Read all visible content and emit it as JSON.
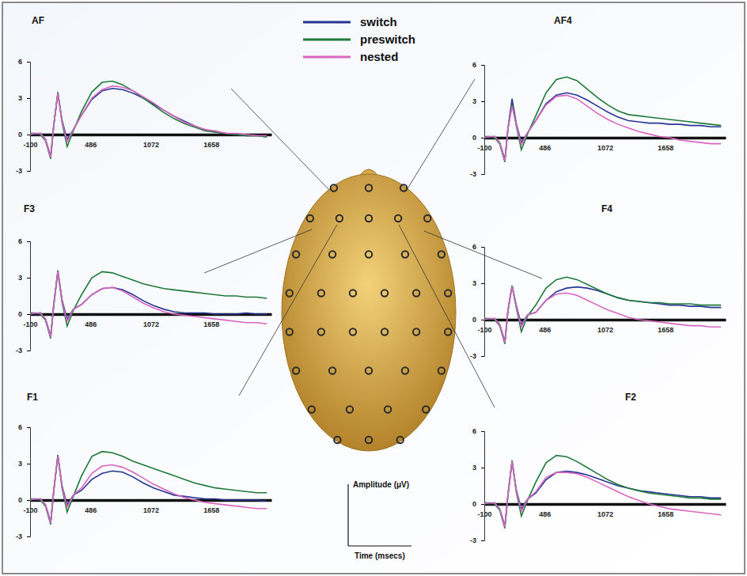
{
  "chart_data": [
    {
      "type": "line",
      "title": "AF",
      "legend": "top",
      "x": [
        -100,
        -50,
        0,
        50,
        100,
        130,
        170,
        210,
        260,
        320,
        400,
        500,
        600,
        700,
        800,
        900,
        1000,
        1100,
        1200,
        1300,
        1400,
        1500,
        1600,
        1700,
        1800,
        1900,
        2000,
        2100,
        2200
      ],
      "xlim": [
        -100,
        2244
      ],
      "xticks": [
        -100,
        486,
        1072,
        1658
      ],
      "ylim": [
        -3,
        6
      ],
      "yticks": [
        -3,
        0,
        3,
        6
      ],
      "series": [
        {
          "name": "switch",
          "color": "#283593",
          "values": [
            0.1,
            0.0,
            0.1,
            -0.4,
            -1.8,
            0.8,
            3.4,
            1.2,
            -0.4,
            0.4,
            1.6,
            2.9,
            3.6,
            3.8,
            3.7,
            3.4,
            3.0,
            2.5,
            2.0,
            1.5,
            1.1,
            0.7,
            0.4,
            0.2,
            0.1,
            0.0,
            -0.1,
            -0.1,
            -0.2
          ]
        },
        {
          "name": "preswitch",
          "color": "#1f7a3a",
          "values": [
            0.1,
            0.1,
            0.0,
            -0.5,
            -2.0,
            0.7,
            3.5,
            1.0,
            -1.0,
            0.3,
            1.9,
            3.5,
            4.3,
            4.4,
            4.1,
            3.6,
            3.0,
            2.4,
            1.8,
            1.3,
            0.9,
            0.6,
            0.3,
            0.2,
            0.1,
            0.0,
            -0.1,
            -0.1,
            -0.2
          ]
        },
        {
          "name": "nested",
          "color": "#d966c0",
          "values": [
            0.0,
            0.1,
            0.1,
            -0.4,
            -1.9,
            0.8,
            3.4,
            1.1,
            -0.6,
            0.4,
            1.6,
            3.0,
            3.7,
            4.0,
            3.9,
            3.6,
            3.1,
            2.6,
            2.0,
            1.5,
            1.0,
            0.7,
            0.4,
            0.3,
            0.1,
            0.1,
            0.0,
            -0.1,
            -0.1
          ]
        }
      ]
    },
    {
      "type": "line",
      "title": "AF4",
      "x": [
        -100,
        -50,
        0,
        50,
        100,
        130,
        170,
        210,
        260,
        320,
        400,
        500,
        600,
        700,
        800,
        900,
        1000,
        1100,
        1200,
        1300,
        1400,
        1500,
        1600,
        1700,
        1800,
        1900,
        2000,
        2100,
        2200
      ],
      "xlim": [
        -100,
        2244
      ],
      "xticks": [
        -100,
        486,
        1072,
        1658
      ],
      "ylim": [
        -3,
        6
      ],
      "yticks": [
        -3,
        0,
        3,
        6
      ],
      "series": [
        {
          "name": "switch",
          "color": "#283593",
          "values": [
            0.1,
            0.0,
            0.1,
            -0.4,
            -1.8,
            0.8,
            3.2,
            1.2,
            -0.4,
            0.4,
            1.4,
            2.8,
            3.5,
            3.7,
            3.5,
            3.1,
            2.6,
            2.1,
            1.7,
            1.4,
            1.3,
            1.2,
            1.2,
            1.1,
            1.1,
            1.0,
            1.0,
            0.9,
            0.9
          ]
        },
        {
          "name": "preswitch",
          "color": "#1f7a3a",
          "values": [
            0.1,
            0.1,
            0.0,
            -0.5,
            -2.0,
            0.7,
            2.8,
            1.0,
            -1.0,
            0.3,
            1.8,
            3.7,
            4.8,
            5.0,
            4.7,
            4.0,
            3.3,
            2.7,
            2.2,
            1.9,
            1.8,
            1.7,
            1.6,
            1.5,
            1.4,
            1.3,
            1.2,
            1.1,
            1.0
          ]
        },
        {
          "name": "nested",
          "color": "#d966c0",
          "values": [
            0.0,
            0.1,
            0.1,
            -0.4,
            -1.9,
            0.8,
            2.6,
            1.1,
            -0.6,
            0.4,
            1.4,
            2.7,
            3.4,
            3.5,
            3.2,
            2.6,
            2.0,
            1.5,
            1.1,
            0.8,
            0.5,
            0.3,
            0.1,
            0.0,
            -0.2,
            -0.3,
            -0.4,
            -0.5,
            -0.5
          ]
        }
      ]
    },
    {
      "type": "line",
      "title": "F3",
      "x": [
        -100,
        -50,
        0,
        50,
        100,
        130,
        170,
        210,
        260,
        320,
        400,
        500,
        600,
        700,
        800,
        900,
        1000,
        1100,
        1200,
        1300,
        1400,
        1500,
        1600,
        1700,
        1800,
        1900,
        2000,
        2100,
        2200
      ],
      "xlim": [
        -100,
        2244
      ],
      "xticks": [
        -100,
        486,
        1072,
        1658
      ],
      "ylim": [
        -3,
        6
      ],
      "yticks": [
        -3,
        0,
        3,
        6
      ],
      "series": [
        {
          "name": "switch",
          "color": "#283593",
          "values": [
            0.1,
            0.0,
            0.1,
            -0.4,
            -1.8,
            0.8,
            3.6,
            1.2,
            -0.4,
            0.4,
            0.8,
            1.6,
            2.1,
            2.2,
            2.0,
            1.6,
            1.1,
            0.7,
            0.4,
            0.2,
            0.1,
            0.1,
            0.1,
            0.0,
            0.0,
            0.0,
            0.1,
            0.0,
            0.0
          ]
        },
        {
          "name": "preswitch",
          "color": "#1f7a3a",
          "values": [
            0.1,
            0.1,
            0.0,
            -0.5,
            -2.0,
            0.7,
            3.5,
            1.0,
            -1.0,
            0.3,
            1.6,
            3.0,
            3.5,
            3.4,
            3.1,
            2.8,
            2.5,
            2.3,
            2.1,
            2.0,
            1.9,
            1.8,
            1.7,
            1.6,
            1.5,
            1.5,
            1.4,
            1.4,
            1.3
          ]
        },
        {
          "name": "nested",
          "color": "#d966c0",
          "values": [
            0.0,
            0.1,
            0.1,
            -0.4,
            -1.9,
            0.8,
            3.5,
            1.1,
            -0.6,
            0.4,
            0.8,
            1.6,
            2.1,
            2.2,
            1.9,
            1.4,
            0.9,
            0.5,
            0.2,
            0.0,
            -0.1,
            -0.2,
            -0.3,
            -0.4,
            -0.5,
            -0.6,
            -0.7,
            -0.7,
            -0.8
          ]
        }
      ]
    },
    {
      "type": "line",
      "title": "F4",
      "x": [
        -100,
        -50,
        0,
        50,
        100,
        130,
        170,
        210,
        260,
        320,
        400,
        500,
        600,
        700,
        800,
        900,
        1000,
        1100,
        1200,
        1300,
        1400,
        1500,
        1600,
        1700,
        1800,
        1900,
        2000,
        2100,
        2200
      ],
      "xlim": [
        -100,
        2244
      ],
      "xticks": [
        -100,
        486,
        1072,
        1658
      ],
      "ylim": [
        -3,
        6
      ],
      "yticks": [
        -3,
        0,
        3,
        6
      ],
      "series": [
        {
          "name": "switch",
          "color": "#283593",
          "values": [
            0.1,
            0.0,
            0.1,
            -0.4,
            -1.8,
            0.8,
            2.8,
            1.2,
            -0.4,
            0.4,
            0.6,
            1.6,
            2.3,
            2.6,
            2.7,
            2.6,
            2.4,
            2.1,
            1.8,
            1.6,
            1.5,
            1.4,
            1.3,
            1.2,
            1.2,
            1.1,
            1.1,
            1.0,
            1.0
          ]
        },
        {
          "name": "preswitch",
          "color": "#1f7a3a",
          "values": [
            0.1,
            0.1,
            0.0,
            -0.5,
            -2.0,
            0.7,
            2.8,
            1.0,
            -1.0,
            0.3,
            1.2,
            2.6,
            3.3,
            3.5,
            3.3,
            2.9,
            2.5,
            2.1,
            1.8,
            1.6,
            1.5,
            1.4,
            1.4,
            1.3,
            1.3,
            1.3,
            1.2,
            1.2,
            1.2
          ]
        },
        {
          "name": "nested",
          "color": "#d966c0",
          "values": [
            0.0,
            0.1,
            0.1,
            -0.4,
            -1.9,
            0.8,
            2.7,
            1.1,
            -0.6,
            0.4,
            0.6,
            1.6,
            2.1,
            2.2,
            2.0,
            1.6,
            1.2,
            0.8,
            0.5,
            0.2,
            0.0,
            -0.1,
            -0.2,
            -0.3,
            -0.4,
            -0.5,
            -0.5,
            -0.6,
            -0.6
          ]
        }
      ]
    },
    {
      "type": "line",
      "title": "F1",
      "x": [
        -100,
        -50,
        0,
        50,
        100,
        130,
        170,
        210,
        260,
        320,
        400,
        500,
        600,
        700,
        800,
        900,
        1000,
        1100,
        1200,
        1300,
        1400,
        1500,
        1600,
        1700,
        1800,
        1900,
        2000,
        2100,
        2200
      ],
      "xlim": [
        -100,
        2244
      ],
      "xticks": [
        -100,
        486,
        1072,
        1658
      ],
      "ylim": [
        -3,
        6
      ],
      "yticks": [
        -3,
        0,
        3,
        6
      ],
      "series": [
        {
          "name": "switch",
          "color": "#283593",
          "values": [
            0.1,
            0.0,
            0.1,
            -0.4,
            -1.8,
            0.8,
            3.7,
            1.2,
            -0.4,
            0.4,
            0.8,
            1.7,
            2.2,
            2.4,
            2.3,
            1.9,
            1.4,
            1.0,
            0.7,
            0.4,
            0.3,
            0.2,
            0.1,
            0.1,
            0.0,
            0.0,
            0.0,
            0.0,
            -0.1
          ]
        },
        {
          "name": "preswitch",
          "color": "#1f7a3a",
          "values": [
            0.1,
            0.1,
            0.0,
            -0.5,
            -2.0,
            0.7,
            3.7,
            1.0,
            -1.0,
            0.3,
            2.0,
            3.6,
            4.0,
            3.9,
            3.6,
            3.2,
            2.9,
            2.6,
            2.3,
            2.0,
            1.7,
            1.4,
            1.2,
            1.0,
            0.9,
            0.8,
            0.7,
            0.6,
            0.6
          ]
        },
        {
          "name": "nested",
          "color": "#d966c0",
          "values": [
            0.0,
            0.1,
            0.1,
            -0.4,
            -1.9,
            0.8,
            3.6,
            1.1,
            -0.6,
            0.4,
            1.0,
            2.2,
            2.8,
            2.9,
            2.7,
            2.3,
            1.8,
            1.3,
            0.9,
            0.5,
            0.2,
            0.0,
            -0.2,
            -0.3,
            -0.4,
            -0.5,
            -0.6,
            -0.7,
            -0.7
          ]
        }
      ]
    },
    {
      "type": "line",
      "title": "F2",
      "x": [
        -100,
        -50,
        0,
        50,
        100,
        130,
        170,
        210,
        260,
        320,
        400,
        500,
        600,
        700,
        800,
        900,
        1000,
        1100,
        1200,
        1300,
        1400,
        1500,
        1600,
        1700,
        1800,
        1900,
        2000,
        2100,
        2200
      ],
      "xlim": [
        -100,
        2244
      ],
      "xticks": [
        -100,
        486,
        1072,
        1658
      ],
      "ylim": [
        -3,
        6
      ],
      "yticks": [
        -3,
        0,
        3,
        6
      ],
      "series": [
        {
          "name": "switch",
          "color": "#283593",
          "values": [
            0.1,
            0.0,
            0.1,
            -0.4,
            -1.8,
            0.8,
            3.5,
            1.2,
            -0.4,
            0.4,
            0.9,
            2.0,
            2.6,
            2.7,
            2.6,
            2.4,
            2.1,
            1.8,
            1.5,
            1.3,
            1.1,
            1.0,
            0.9,
            0.8,
            0.7,
            0.6,
            0.6,
            0.5,
            0.5
          ]
        },
        {
          "name": "preswitch",
          "color": "#1f7a3a",
          "values": [
            0.1,
            0.1,
            0.0,
            -0.5,
            -2.0,
            0.7,
            3.6,
            1.0,
            -1.0,
            0.3,
            1.8,
            3.4,
            4.0,
            3.9,
            3.5,
            3.0,
            2.5,
            2.0,
            1.6,
            1.3,
            1.1,
            0.9,
            0.8,
            0.7,
            0.6,
            0.5,
            0.5,
            0.4,
            0.4
          ]
        },
        {
          "name": "nested",
          "color": "#d966c0",
          "values": [
            0.0,
            0.1,
            0.1,
            -0.4,
            -1.9,
            0.8,
            3.5,
            1.1,
            -0.6,
            0.4,
            1.0,
            2.2,
            2.6,
            2.6,
            2.5,
            2.2,
            1.8,
            1.4,
            1.0,
            0.6,
            0.3,
            0.0,
            -0.2,
            -0.4,
            -0.5,
            -0.6,
            -0.7,
            -0.8,
            -0.9
          ]
        }
      ]
    }
  ],
  "scale_bar": {
    "y_label": "Amplitude (μV)",
    "x_label": "Time (msecs)"
  }
}
